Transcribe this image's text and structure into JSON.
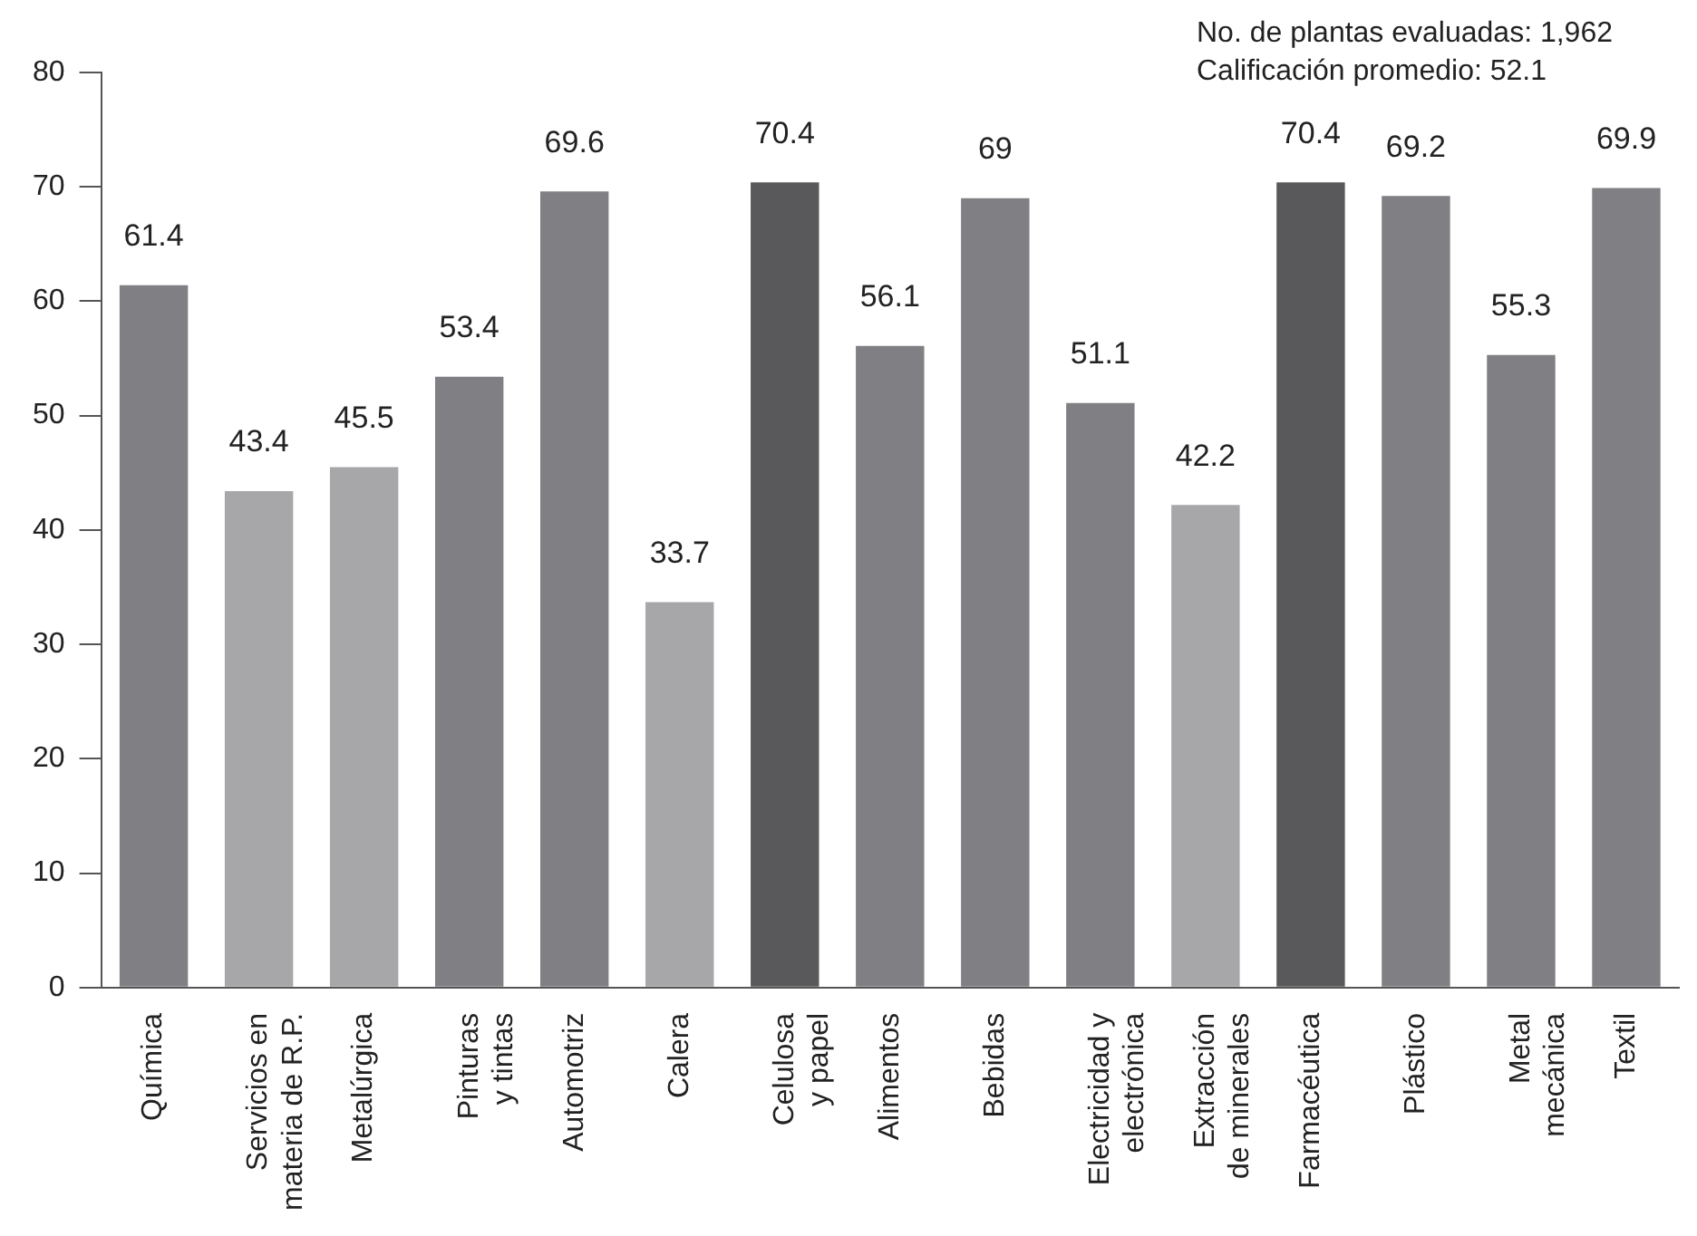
{
  "chart_data": {
    "type": "bar",
    "categories": [
      "Química",
      "Servicios en\nmateria de R.P.",
      "Metalúrgica",
      "Pinturas\ny tintas",
      "Automotriz",
      "Calera",
      "Celulosa\ny papel",
      "Alimentos",
      "Bebidas",
      "Electricidad y\nelectrónica",
      "Extracción\nde minerales",
      "Farmacéutica",
      "Plástico",
      "Metal\nmecánica",
      "Textil"
    ],
    "values": [
      61.4,
      43.4,
      45.5,
      53.4,
      69.6,
      33.7,
      70.4,
      56.1,
      69,
      51.1,
      42.2,
      70.4,
      69.2,
      55.3,
      69.9
    ],
    "colors": [
      "#808084",
      "#a7a7aa",
      "#a7a7aa",
      "#808084",
      "#808084",
      "#a7a7aa",
      "#59595b",
      "#808084",
      "#808084",
      "#808084",
      "#a7a7aa",
      "#59595b",
      "#808084",
      "#808084",
      "#808084"
    ],
    "ylim": [
      0,
      80
    ],
    "yticks": [
      0,
      10,
      20,
      30,
      40,
      50,
      60,
      70,
      80
    ],
    "grid": false,
    "legend": false,
    "data_labels": true,
    "annotations": [
      "No. de plantas evaluadas: 1,962",
      "Calificación promedio: 52.1"
    ]
  }
}
